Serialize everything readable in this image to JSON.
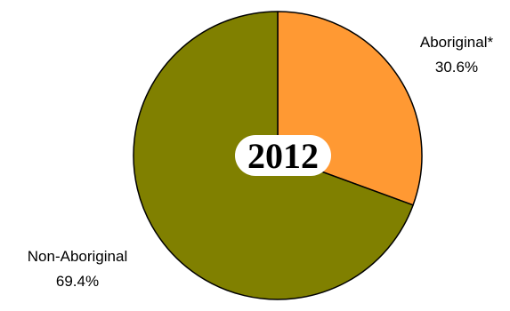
{
  "chart_data": {
    "type": "pie",
    "center_label": "2012",
    "slices": [
      {
        "label": "Aboriginal*",
        "value": 30.6,
        "value_text": "30.6%",
        "color": "#FF9933"
      },
      {
        "label": "Non-Aboriginal",
        "value": 69.4,
        "value_text": "69.4%",
        "color": "#808000"
      }
    ],
    "start_angle": "12 o'clock",
    "direction": "clockwise",
    "slice_border_color": "#000000"
  }
}
